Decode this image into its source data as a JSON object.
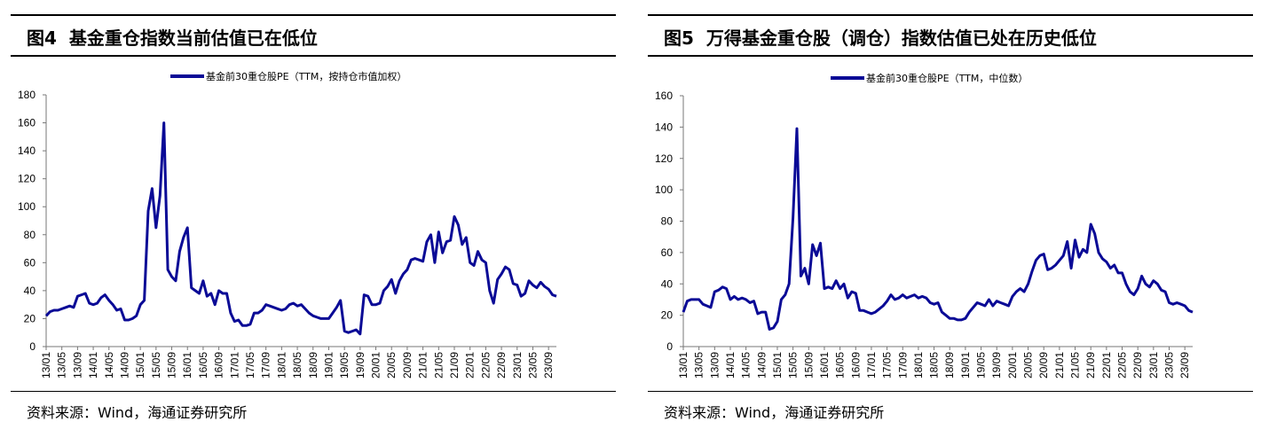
{
  "charts_meta": [
    {
      "title": "图4  基金重仓指数当前估值已在低位",
      "source": "资料来源：Wind，海通证券研究所"
    },
    {
      "title": "图5  万得基金重仓股（调仓）指数估值已处在历史低位",
      "source": "资料来源：Wind，海通证券研究所"
    }
  ],
  "chart_data": [
    {
      "type": "line",
      "title": "图4  基金重仓指数当前估值已在低位",
      "xlabel": "",
      "ylabel": "",
      "ylim": [
        0,
        180
      ],
      "yticks": [
        0,
        20,
        40,
        60,
        80,
        100,
        120,
        140,
        160,
        180
      ],
      "xtick_labels": [
        "13/01",
        "13/05",
        "13/09",
        "14/01",
        "14/05",
        "14/09",
        "15/01",
        "15/05",
        "15/09",
        "16/01",
        "16/05",
        "16/09",
        "17/01",
        "17/05",
        "17/09",
        "18/01",
        "18/05",
        "18/09",
        "19/01",
        "19/05",
        "19/09",
        "20/01",
        "20/05",
        "20/09",
        "21/01",
        "21/05",
        "21/09",
        "22/01",
        "22/05",
        "22/09",
        "23/01",
        "23/05",
        "23/09"
      ],
      "legend": "top-center",
      "grid": false,
      "color": "#0a0a96",
      "series": [
        {
          "name": "基金前30重仓股PE（TTM，按持仓市值加权）",
          "x_first": "2013-01",
          "x_last": "2023-11",
          "frequency": "monthly",
          "values": [
            22,
            25,
            26,
            26,
            27,
            28,
            29,
            28,
            36,
            37,
            38,
            31,
            30,
            31,
            35,
            37,
            33,
            30,
            26,
            27,
            19,
            19,
            20,
            22,
            30,
            33,
            97,
            113,
            85,
            108,
            160,
            55,
            50,
            47,
            68,
            78,
            85,
            42,
            40,
            38,
            47,
            36,
            38,
            30,
            40,
            38,
            38,
            24,
            18,
            19,
            15,
            15,
            16,
            24,
            24,
            26,
            30,
            29,
            28,
            27,
            26,
            27,
            30,
            31,
            29,
            30,
            27,
            24,
            22,
            21,
            20,
            20,
            20,
            24,
            28,
            33,
            11,
            10,
            11,
            12,
            9,
            37,
            36,
            30,
            30,
            31,
            40,
            43,
            48,
            38,
            47,
            52,
            55,
            62,
            63,
            62,
            61,
            75,
            80,
            60,
            82,
            67,
            75,
            76,
            93,
            87,
            73,
            78,
            60,
            58,
            68,
            62,
            60,
            40,
            31,
            48,
            52,
            57,
            55,
            45,
            44,
            36,
            38,
            47,
            44,
            42,
            46,
            43,
            41,
            37,
            36
          ]
        }
      ]
    },
    {
      "type": "line",
      "title": "图5  万得基金重仓股（调仓）指数估值已处在历史低位",
      "xlabel": "",
      "ylabel": "",
      "ylim": [
        0,
        160
      ],
      "yticks": [
        0,
        20,
        40,
        60,
        80,
        100,
        120,
        140,
        160
      ],
      "xtick_labels": [
        "13/01",
        "13/05",
        "13/09",
        "14/01",
        "14/05",
        "14/09",
        "15/01",
        "15/05",
        "15/09",
        "16/01",
        "16/05",
        "16/09",
        "17/01",
        "17/05",
        "17/09",
        "18/01",
        "18/05",
        "18/09",
        "19/01",
        "19/05",
        "19/09",
        "20/01",
        "20/05",
        "20/09",
        "21/01",
        "21/05",
        "21/09",
        "22/01",
        "22/05",
        "22/09",
        "23/01",
        "23/05",
        "23/09"
      ],
      "legend": "top-center",
      "grid": false,
      "color": "#0a0a96",
      "series": [
        {
          "name": "基金前30重仓股PE（TTM，中位数）",
          "x_first": "2013-01",
          "x_last": "2023-11",
          "frequency": "monthly",
          "values": [
            22,
            29,
            30,
            30,
            30,
            27,
            26,
            25,
            35,
            36,
            38,
            37,
            30,
            32,
            30,
            31,
            30,
            28,
            29,
            21,
            22,
            22,
            11,
            12,
            16,
            30,
            33,
            40,
            82,
            139,
            45,
            50,
            40,
            65,
            58,
            66,
            37,
            38,
            37,
            42,
            37,
            40,
            31,
            35,
            34,
            23,
            23,
            22,
            21,
            22,
            24,
            26,
            29,
            33,
            30,
            31,
            33,
            31,
            32,
            33,
            31,
            32,
            31,
            28,
            27,
            28,
            22,
            20,
            18,
            18,
            17,
            17,
            18,
            22,
            25,
            28,
            27,
            26,
            30,
            26,
            29,
            28,
            27,
            26,
            32,
            35,
            37,
            35,
            40,
            48,
            55,
            58,
            59,
            49,
            50,
            52,
            55,
            58,
            67,
            50,
            68,
            57,
            62,
            60,
            78,
            72,
            60,
            56,
            54,
            50,
            52,
            47,
            47,
            40,
            35,
            33,
            37,
            45,
            40,
            38,
            42,
            40,
            36,
            35,
            28,
            27,
            28,
            27,
            26,
            23,
            22
          ]
        }
      ]
    }
  ]
}
